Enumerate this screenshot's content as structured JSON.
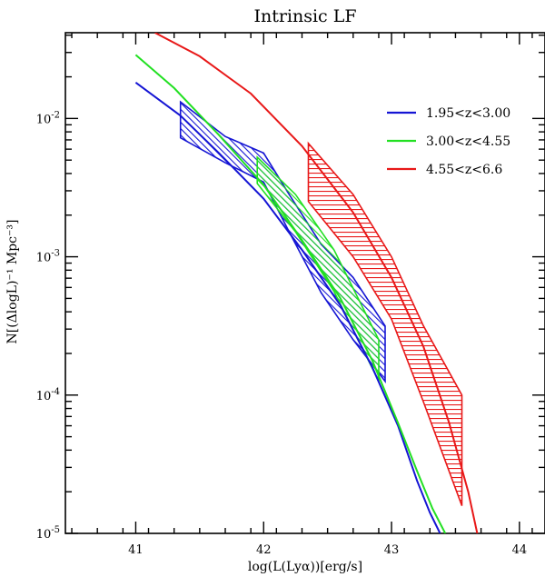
{
  "chart_data": {
    "type": "line",
    "title": "Intrinsic LF",
    "xlabel": "log(L(Lyα))[erg/s]",
    "ylabel": "N[(ΔlogL)⁻¹ Mpc⁻³]",
    "xlim": [
      40.45,
      44.2
    ],
    "ylim_log10": [
      -5,
      -1.38
    ],
    "x_ticks": [
      41,
      42,
      43,
      44
    ],
    "x_tick_labels": [
      "41",
      "42",
      "43",
      "44"
    ],
    "y_ticks_log10": [
      -2,
      -3,
      -4,
      -5
    ],
    "y_tick_labels": [
      {
        "base": "10",
        "exp": "-2"
      },
      {
        "base": "10",
        "exp": "-3"
      },
      {
        "base": "10",
        "exp": "-4"
      },
      {
        "base": "10",
        "exp": "-5"
      }
    ],
    "legend": {
      "placement": "top-right",
      "entries": [
        {
          "label": "1.95<z<3.00",
          "color": "#1515d4"
        },
        {
          "label": "3.00<z<4.55",
          "color": "#22e022"
        },
        {
          "label": "4.55<z<6.6",
          "color": "#e81818"
        }
      ]
    },
    "series": [
      {
        "name": "1.95<z<3.00",
        "color": "#1515d4",
        "model_curve": {
          "x": [
            41.0,
            41.35,
            41.65,
            42.0,
            42.3,
            42.6,
            42.85,
            43.05,
            43.2,
            43.3,
            43.38
          ],
          "log_y": [
            -1.74,
            -1.98,
            -2.25,
            -2.58,
            -2.95,
            -3.35,
            -3.8,
            -4.22,
            -4.62,
            -4.85,
            -5.0
          ]
        },
        "band": {
          "upper": {
            "x": [
              41.35,
              41.7,
              42.0,
              42.2,
              42.45,
              42.7,
              42.95
            ],
            "log_y": [
              -1.88,
              -2.13,
              -2.25,
              -2.55,
              -2.91,
              -3.15,
              -3.5
            ]
          },
          "lower": {
            "x": [
              41.35,
              41.7,
              42.0,
              42.2,
              42.45,
              42.7,
              42.95
            ],
            "log_y": [
              -2.14,
              -2.32,
              -2.46,
              -2.82,
              -3.26,
              -3.6,
              -3.9
            ]
          }
        }
      },
      {
        "name": "3.00<z<4.55",
        "color": "#22e022",
        "model_curve": {
          "x": [
            41.0,
            41.3,
            41.65,
            42.0,
            42.3,
            42.6,
            42.85,
            43.05,
            43.2,
            43.32,
            43.42
          ],
          "log_y": [
            -1.54,
            -1.78,
            -2.12,
            -2.48,
            -2.88,
            -3.3,
            -3.75,
            -4.2,
            -4.55,
            -4.82,
            -5.0
          ]
        },
        "band": {
          "upper": {
            "x": [
              41.95,
              42.25,
              42.55,
              42.9
            ],
            "log_y": [
              -2.28,
              -2.55,
              -2.95,
              -3.6
            ]
          },
          "lower": {
            "x": [
              41.95,
              42.25,
              42.55,
              42.9
            ],
            "log_y": [
              -2.47,
              -2.82,
              -3.25,
              -3.9
            ]
          }
        }
      },
      {
        "name": "4.55<z<6.6",
        "color": "#e81818",
        "model_curve": {
          "x": [
            41.15,
            41.5,
            41.9,
            42.3,
            42.7,
            43.0,
            43.25,
            43.45,
            43.6,
            43.67
          ],
          "log_y": [
            -1.38,
            -1.55,
            -1.82,
            -2.2,
            -2.68,
            -3.15,
            -3.65,
            -4.2,
            -4.7,
            -5.0
          ]
        },
        "band": {
          "upper": {
            "x": [
              42.35,
              42.7,
              43.0,
              43.25,
              43.55
            ],
            "log_y": [
              -2.18,
              -2.55,
              -3.0,
              -3.5,
              -4.0
            ]
          },
          "lower": {
            "x": [
              42.35,
              42.7,
              43.0,
              43.25,
              43.55
            ],
            "log_y": [
              -2.6,
              -3.0,
              -3.45,
              -4.05,
              -4.8
            ]
          }
        }
      }
    ]
  }
}
